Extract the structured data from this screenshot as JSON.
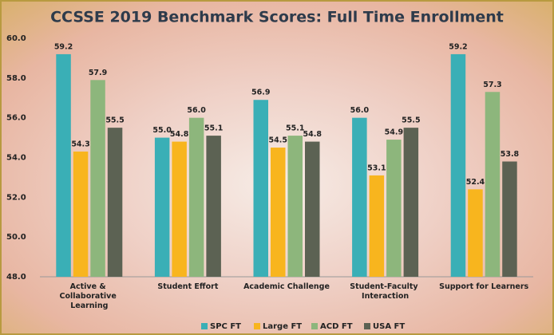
{
  "chart_data": {
    "type": "bar",
    "title": "CCSSE 2019 Benchmark Scores: Full Time Enrollment",
    "categories": [
      "Active & Collaborative Learning",
      "Student Effort",
      "Academic Challenge",
      "Student-Faculty Interaction",
      "Support for Learners"
    ],
    "series": [
      {
        "name": "SPC FT",
        "color": "#3aafb6",
        "values": [
          59.2,
          55.0,
          56.9,
          56.0,
          59.2
        ],
        "value_labels": [
          "59.2",
          "55.0",
          "56.9",
          "56.0",
          "59.2"
        ]
      },
      {
        "name": "Large FT",
        "color": "#f8b51e",
        "values": [
          54.3,
          54.8,
          54.5,
          53.1,
          52.4
        ],
        "value_labels": [
          "54.3",
          "54.8",
          "54.5",
          "53.1",
          "52.4"
        ]
      },
      {
        "name": "ACD FT",
        "color": "#8db67c",
        "values": [
          57.9,
          56.0,
          55.1,
          54.9,
          57.3
        ],
        "value_labels": [
          "57.9",
          "56.0",
          "55.1",
          "54.9",
          "57.3"
        ]
      },
      {
        "name": "USA FT",
        "color": "#5c6253",
        "values": [
          55.5,
          55.1,
          54.8,
          55.5,
          53.8
        ],
        "value_labels": [
          "55.5",
          "55.1",
          "54.8",
          "55.5",
          "53.8"
        ]
      }
    ],
    "ylim": [
      48,
      60
    ],
    "yticks": [
      {
        "value": 48,
        "label": "48.0"
      },
      {
        "value": 50,
        "label": "50.0"
      },
      {
        "value": 52,
        "label": "52.0"
      },
      {
        "value": 54,
        "label": "54.0"
      },
      {
        "value": 56,
        "label": "56.0"
      },
      {
        "value": 58,
        "label": "58.0"
      },
      {
        "value": 60,
        "label": "60.0"
      }
    ],
    "grid": false,
    "legend": "bottom"
  }
}
